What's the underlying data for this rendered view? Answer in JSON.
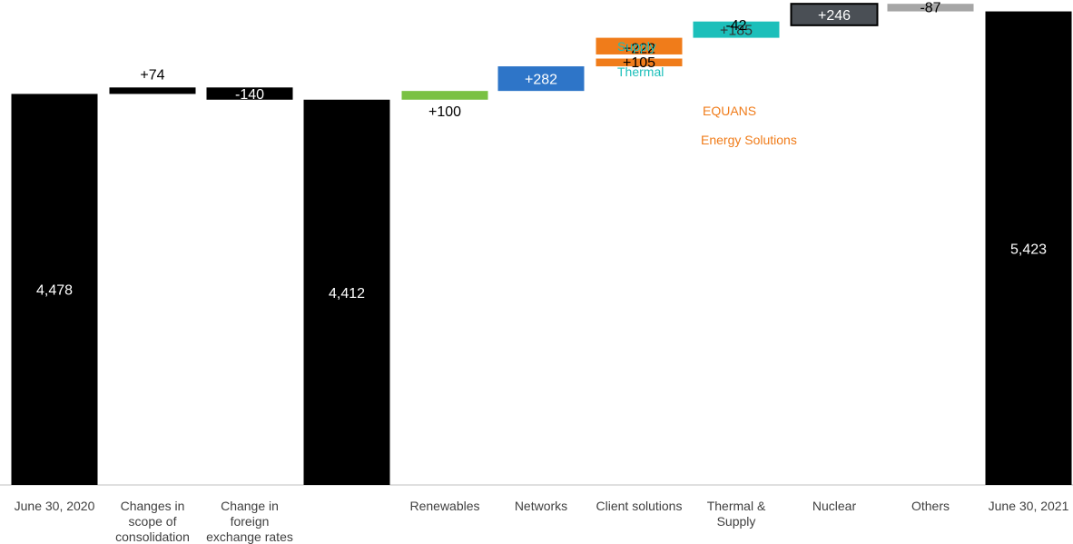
{
  "chart_data": {
    "type": "bar",
    "subtype": "waterfall",
    "title": "",
    "xlabel": "",
    "ylabel": "",
    "grid": false,
    "legend": "none",
    "categories": [
      "June 30, 2020",
      "Changes in scope of consolidation",
      "Change in foreign exchange rates",
      "",
      "Renewables",
      "Networks",
      "Client solutions",
      "Thermal & Supply",
      "Nuclear",
      "Others",
      "June 30, 2021"
    ],
    "category_lines": [
      [
        "June 30, 2020"
      ],
      [
        "Changes in",
        "scope of",
        "consolidation"
      ],
      [
        "Change in",
        "foreign",
        "exchange rates"
      ],
      [],
      [
        "Renewables"
      ],
      [
        "Networks"
      ],
      [
        "Client solutions"
      ],
      [
        "Thermal &",
        "Supply"
      ],
      [
        "Nuclear"
      ],
      [
        "Others"
      ],
      [
        "June 30, 2021"
      ]
    ],
    "bars": [
      {
        "category": "June 30, 2020",
        "kind": "total",
        "value": 4478,
        "label": "4,478",
        "color": "#000000"
      },
      {
        "category": "Changes in scope of consolidation",
        "kind": "delta",
        "value": 74,
        "label": "+74",
        "color": "#000000"
      },
      {
        "category": "Change in foreign exchange rates",
        "kind": "delta",
        "value": -140,
        "label": "-140",
        "color": "#000000"
      },
      {
        "category": "",
        "kind": "total",
        "value": 4412,
        "label": "4,412",
        "color": "#000000"
      },
      {
        "category": "Renewables",
        "kind": "delta",
        "value": 100,
        "label": "+100",
        "color": "#7ac143"
      },
      {
        "category": "Networks",
        "kind": "delta",
        "value": 282,
        "label": "+282",
        "color": "#2e75c8"
      },
      {
        "category": "Client solutions",
        "kind": "stacked-delta",
        "segments": [
          {
            "name": "Energy Solutions",
            "value": 105,
            "label": "+105",
            "color": "#f07c1a"
          },
          {
            "name": "EQUANS",
            "value": 222,
            "label": "+222",
            "color": "#f07c1a"
          }
        ]
      },
      {
        "category": "Thermal & Supply",
        "kind": "stacked-delta",
        "segments": [
          {
            "name": "Thermal",
            "value": 185,
            "label": "+185",
            "color": "#1cbfba"
          },
          {
            "name": "Supply",
            "value": -42,
            "label": "-42",
            "color": "#1cbfba"
          }
        ]
      },
      {
        "category": "Nuclear",
        "kind": "delta",
        "value": 246,
        "label": "+246",
        "color": "#4a4f55"
      },
      {
        "category": "Others",
        "kind": "delta",
        "value": -87,
        "label": "-87",
        "color": "#a6a6a6"
      },
      {
        "category": "June 30, 2021",
        "kind": "total",
        "value": 5423,
        "label": "5,423",
        "color": "#000000"
      }
    ],
    "annotations": [
      {
        "text": "Supply",
        "color": "#1cbfba"
      },
      {
        "text": "Thermal",
        "color": "#1cbfba"
      },
      {
        "text": "EQUANS",
        "color": "#f07c1a"
      },
      {
        "text": "Energy Solutions",
        "color": "#f07c1a"
      }
    ],
    "ylim": [
      0,
      5640
    ]
  }
}
